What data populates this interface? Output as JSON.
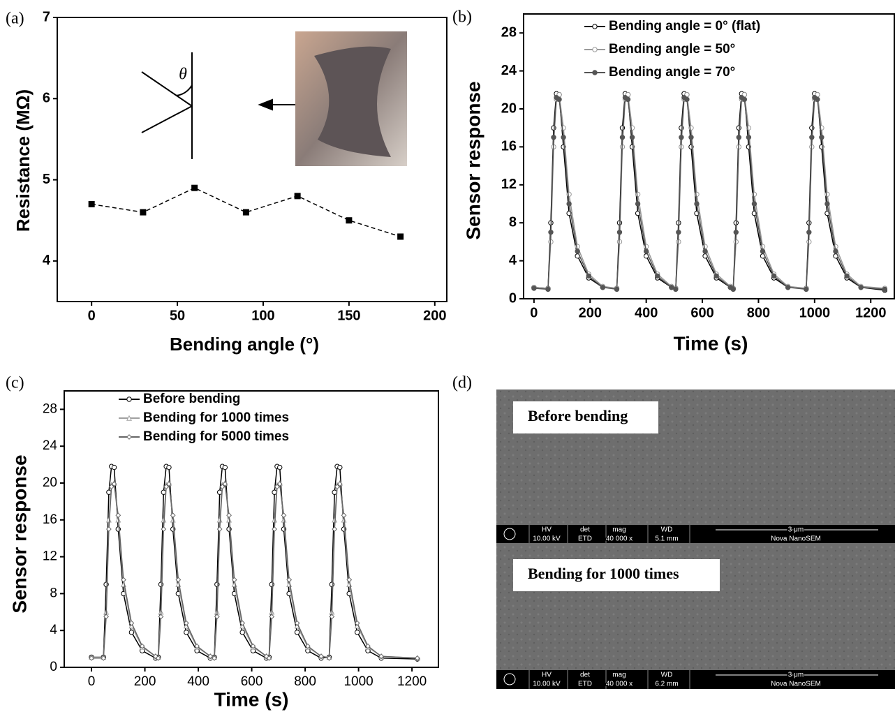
{
  "chart_data": [
    {
      "type": "line",
      "label": "(a)",
      "xlabel": "Bending angle (°)",
      "ylabel": "Resistance (MΩ)",
      "annotation": "θ",
      "x": [
        0,
        30,
        60,
        90,
        120,
        150,
        180
      ],
      "values": [
        4.7,
        4.6,
        4.9,
        4.6,
        4.8,
        4.5,
        4.3
      ],
      "color": "#000000",
      "marker": "square",
      "line_style": "dashed",
      "xlim": [
        -20,
        207
      ],
      "xticks": [
        0,
        50,
        100,
        150,
        200
      ],
      "ylim": [
        3.5,
        7
      ],
      "yticks": [
        4,
        5,
        6,
        7
      ]
    },
    {
      "type": "line",
      "label": "(b)",
      "xlabel": "Time (s)",
      "ylabel": "Sensor response",
      "x": [
        0,
        50,
        60,
        70,
        80,
        90,
        105,
        125,
        155,
        195,
        245,
        295,
        305,
        315,
        325,
        335,
        350,
        370,
        400,
        440,
        490,
        505,
        515,
        525,
        535,
        545,
        560,
        580,
        610,
        650,
        700,
        710,
        720,
        730,
        740,
        750,
        765,
        785,
        815,
        855,
        905,
        970,
        980,
        990,
        1000,
        1010,
        1025,
        1045,
        1075,
        1115,
        1165,
        1250
      ],
      "series": [
        {
          "name": "Bending angle = 0° (flat)",
          "color": "#000000",
          "marker": "circle-open",
          "values": [
            1.2,
            1.1,
            8,
            18,
            21.6,
            21.5,
            16,
            9,
            4.5,
            2.2,
            1.2,
            1.1,
            8,
            18,
            21.6,
            21.5,
            16,
            9,
            4.5,
            2.2,
            1.2,
            1.1,
            8,
            18,
            21.6,
            21.5,
            16,
            9,
            4.5,
            2.2,
            1.2,
            1.1,
            8,
            18,
            21.6,
            21.5,
            16,
            9,
            4.5,
            2.2,
            1.2,
            1.1,
            8,
            18,
            21.6,
            21.5,
            16,
            9,
            4.5,
            2.2,
            1.2,
            0.9
          ]
        },
        {
          "name": "Bending angle = 50°",
          "color": "#9a9a9a",
          "marker": "circle-open",
          "values": [
            1.2,
            1.1,
            6,
            16,
            21,
            21.5,
            18,
            11,
            5.5,
            2.6,
            1.3,
            1.1,
            6,
            16,
            21,
            21.5,
            18,
            11,
            5.5,
            2.6,
            1.3,
            1.1,
            6,
            16,
            21,
            21.5,
            18,
            11,
            5.5,
            2.6,
            1.3,
            1.1,
            6,
            16,
            21,
            21.5,
            18,
            11,
            5.5,
            2.6,
            1.3,
            1.1,
            6,
            16,
            21,
            21.5,
            18,
            11,
            5.5,
            2.6,
            1.3,
            1.1
          ]
        },
        {
          "name": "Bending angle = 70°",
          "color": "#555555",
          "marker": "circle-filled",
          "values": [
            1.1,
            1.0,
            7,
            17,
            21.2,
            21,
            17,
            10,
            5,
            2.4,
            1.2,
            1.0,
            7,
            17,
            21.2,
            21,
            17,
            10,
            5,
            2.4,
            1.2,
            1.0,
            7,
            17,
            21.2,
            21,
            17,
            10,
            5,
            2.4,
            1.2,
            1.0,
            7,
            17,
            21.2,
            21,
            17,
            10,
            5,
            2.4,
            1.2,
            1.0,
            7,
            17,
            21.2,
            21,
            17,
            10,
            5,
            2.4,
            1.2,
            1.0
          ]
        }
      ],
      "xlim": [
        -37,
        1284
      ],
      "xticks": [
        0,
        200,
        400,
        600,
        800,
        1000,
        1200
      ],
      "ylim": [
        0,
        30
      ],
      "yticks": [
        0,
        4,
        8,
        12,
        16,
        20,
        24,
        28
      ]
    },
    {
      "type": "line",
      "label": "(c)",
      "xlabel": "Time (s)",
      "ylabel": "Sensor response",
      "x": [
        0,
        45,
        55,
        65,
        75,
        85,
        100,
        120,
        150,
        190,
        240,
        250,
        260,
        270,
        280,
        290,
        305,
        325,
        355,
        395,
        445,
        460,
        470,
        480,
        490,
        500,
        515,
        535,
        565,
        605,
        655,
        665,
        675,
        685,
        695,
        705,
        720,
        740,
        770,
        810,
        860,
        890,
        900,
        910,
        920,
        930,
        945,
        965,
        995,
        1035,
        1085,
        1220
      ],
      "series": [
        {
          "name": "Before bending",
          "color": "#000000",
          "marker": "circle-open",
          "values": [
            1.1,
            1.1,
            9,
            19,
            21.8,
            21.7,
            15,
            8,
            3.8,
            1.8,
            1.0,
            1.1,
            9,
            19,
            21.8,
            21.7,
            15,
            8,
            3.8,
            1.8,
            1.0,
            1.1,
            9,
            19,
            21.8,
            21.7,
            15,
            8,
            3.8,
            1.8,
            1.0,
            1.1,
            9,
            19,
            21.8,
            21.7,
            15,
            8,
            3.8,
            1.8,
            1.0,
            1.1,
            9,
            19,
            21.8,
            21.7,
            15,
            8,
            3.8,
            1.8,
            1.0,
            0.9
          ]
        },
        {
          "name": "Bending for 1000 times",
          "color": "#a0a0a0",
          "marker": "triangle-open",
          "values": [
            1.1,
            1.1,
            6,
            16,
            19.8,
            20,
            16,
            9,
            4.5,
            2.2,
            1.2,
            1.1,
            6,
            16,
            19.8,
            20,
            16,
            9,
            4.5,
            2.2,
            1.2,
            1.1,
            6,
            16,
            19.8,
            20,
            16,
            9,
            4.5,
            2.2,
            1.2,
            1.1,
            6,
            16,
            19.8,
            20,
            16,
            9,
            4.5,
            2.2,
            1.2,
            1.1,
            6,
            16,
            19.8,
            20,
            16,
            9,
            4.5,
            2.2,
            1.2,
            1.0
          ]
        },
        {
          "name": "Bending for 5000 times",
          "color": "#666666",
          "marker": "diamond-open",
          "values": [
            1.0,
            1.0,
            5.5,
            15,
            19.6,
            19.9,
            16.5,
            9.5,
            4.8,
            2.3,
            1.2,
            1.0,
            5.5,
            15,
            19.6,
            19.9,
            16.5,
            9.5,
            4.8,
            2.3,
            1.2,
            1.0,
            5.5,
            15,
            19.6,
            19.9,
            16.5,
            9.5,
            4.8,
            2.3,
            1.2,
            1.0,
            5.5,
            15,
            19.6,
            19.9,
            16.5,
            9.5,
            4.8,
            2.3,
            1.2,
            1.0,
            5.5,
            15,
            19.6,
            19.9,
            16.5,
            9.5,
            4.8,
            2.3,
            1.2,
            1.0
          ]
        }
      ],
      "xlim": [
        -102,
        1299
      ],
      "xticks": [
        0,
        200,
        400,
        600,
        800,
        1000,
        1200
      ],
      "ylim": [
        0,
        30
      ],
      "yticks": [
        0,
        4,
        8,
        12,
        16,
        20,
        24,
        28
      ]
    }
  ],
  "panel_d": {
    "label": "(d)",
    "images": [
      {
        "caption": "Before bending",
        "bar": [
          "HV",
          "10.00 kV",
          "det",
          "ETD",
          "mag",
          "40 000 x",
          "WD",
          "5.1 mm",
          "3 μm",
          "Nova NanoSEM"
        ]
      },
      {
        "caption": "Bending for 1000 times",
        "bar": [
          "HV",
          "10.00 kV",
          "det",
          "ETD",
          "mag",
          "40 000 x",
          "WD",
          "6.2 mm",
          "3 μm",
          "Nova NanoSEM"
        ]
      }
    ]
  }
}
